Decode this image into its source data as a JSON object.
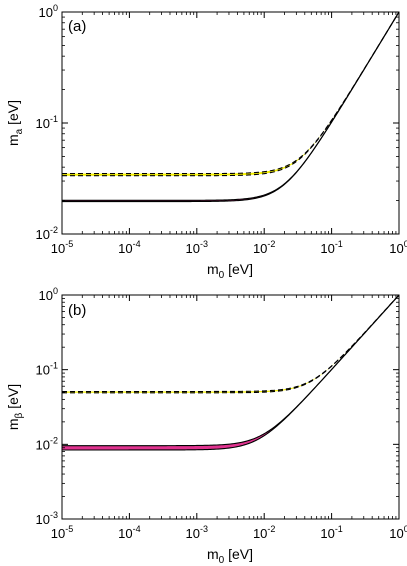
{
  "chart_data": [
    {
      "type": "line",
      "panel_label": "(a)",
      "xlabel": "m0 [eV]",
      "xlabel_main": "m",
      "xlabel_sub": "0",
      "xlabel_unit": " [eV]",
      "ylabel_main": "m",
      "ylabel_sub": "a",
      "ylabel_unit": " [eV]",
      "x_scale": "log",
      "y_scale": "log",
      "xlim": [
        1e-05,
        1
      ],
      "ylim": [
        0.01,
        1
      ],
      "x_ticks": [
        {
          "value": 1e-05,
          "base": "10",
          "exp": "-5"
        },
        {
          "value": 0.0001,
          "base": "10",
          "exp": "-4"
        },
        {
          "value": 0.001,
          "base": "10",
          "exp": "-3"
        },
        {
          "value": 0.01,
          "base": "10",
          "exp": "-2"
        },
        {
          "value": 0.1,
          "base": "10",
          "exp": "-1"
        },
        {
          "value": 1,
          "base": "10",
          "exp": "0"
        }
      ],
      "y_ticks": [
        {
          "value": 0.01,
          "base": "10",
          "exp": "-2"
        },
        {
          "value": 0.1,
          "base": "10",
          "exp": "-1"
        },
        {
          "value": 1,
          "base": "10",
          "exp": "0"
        }
      ],
      "bands": [
        {
          "style": "solid",
          "color": "#000000",
          "fill": "#e0338f",
          "floor_low": 0.0196,
          "floor_high": 0.0201
        },
        {
          "style": "dashed",
          "color": "#000000",
          "fill": "#f4f000",
          "floor_low": 0.0335,
          "floor_high": 0.035
        }
      ]
    },
    {
      "type": "line",
      "panel_label": "(b)",
      "xlabel": "m0 [eV]",
      "xlabel_main": "m",
      "xlabel_sub": "0",
      "xlabel_unit": " [eV]",
      "ylabel_main": "m",
      "ylabel_sub": "β",
      "ylabel_unit": " [eV]",
      "x_scale": "log",
      "y_scale": "log",
      "xlim": [
        1e-05,
        1
      ],
      "ylim": [
        0.001,
        1
      ],
      "x_ticks": [
        {
          "value": 1e-05,
          "base": "10",
          "exp": "-5"
        },
        {
          "value": 0.0001,
          "base": "10",
          "exp": "-4"
        },
        {
          "value": 0.001,
          "base": "10",
          "exp": "-3"
        },
        {
          "value": 0.01,
          "base": "10",
          "exp": "-2"
        },
        {
          "value": 0.1,
          "base": "10",
          "exp": "-1"
        },
        {
          "value": 1,
          "base": "10",
          "exp": "0"
        }
      ],
      "y_ticks": [
        {
          "value": 0.001,
          "base": "10",
          "exp": "-3"
        },
        {
          "value": 0.01,
          "base": "10",
          "exp": "-2"
        },
        {
          "value": 0.1,
          "base": "10",
          "exp": "-1"
        },
        {
          "value": 1,
          "base": "10",
          "exp": "0"
        }
      ],
      "bands": [
        {
          "style": "solid",
          "color": "#000000",
          "fill": "#e0338f",
          "floor_low": 0.0084,
          "floor_high": 0.0096
        },
        {
          "style": "dashed",
          "color": "#000000",
          "fill": "#f4f000",
          "floor_low": 0.049,
          "floor_high": 0.051
        }
      ]
    }
  ]
}
